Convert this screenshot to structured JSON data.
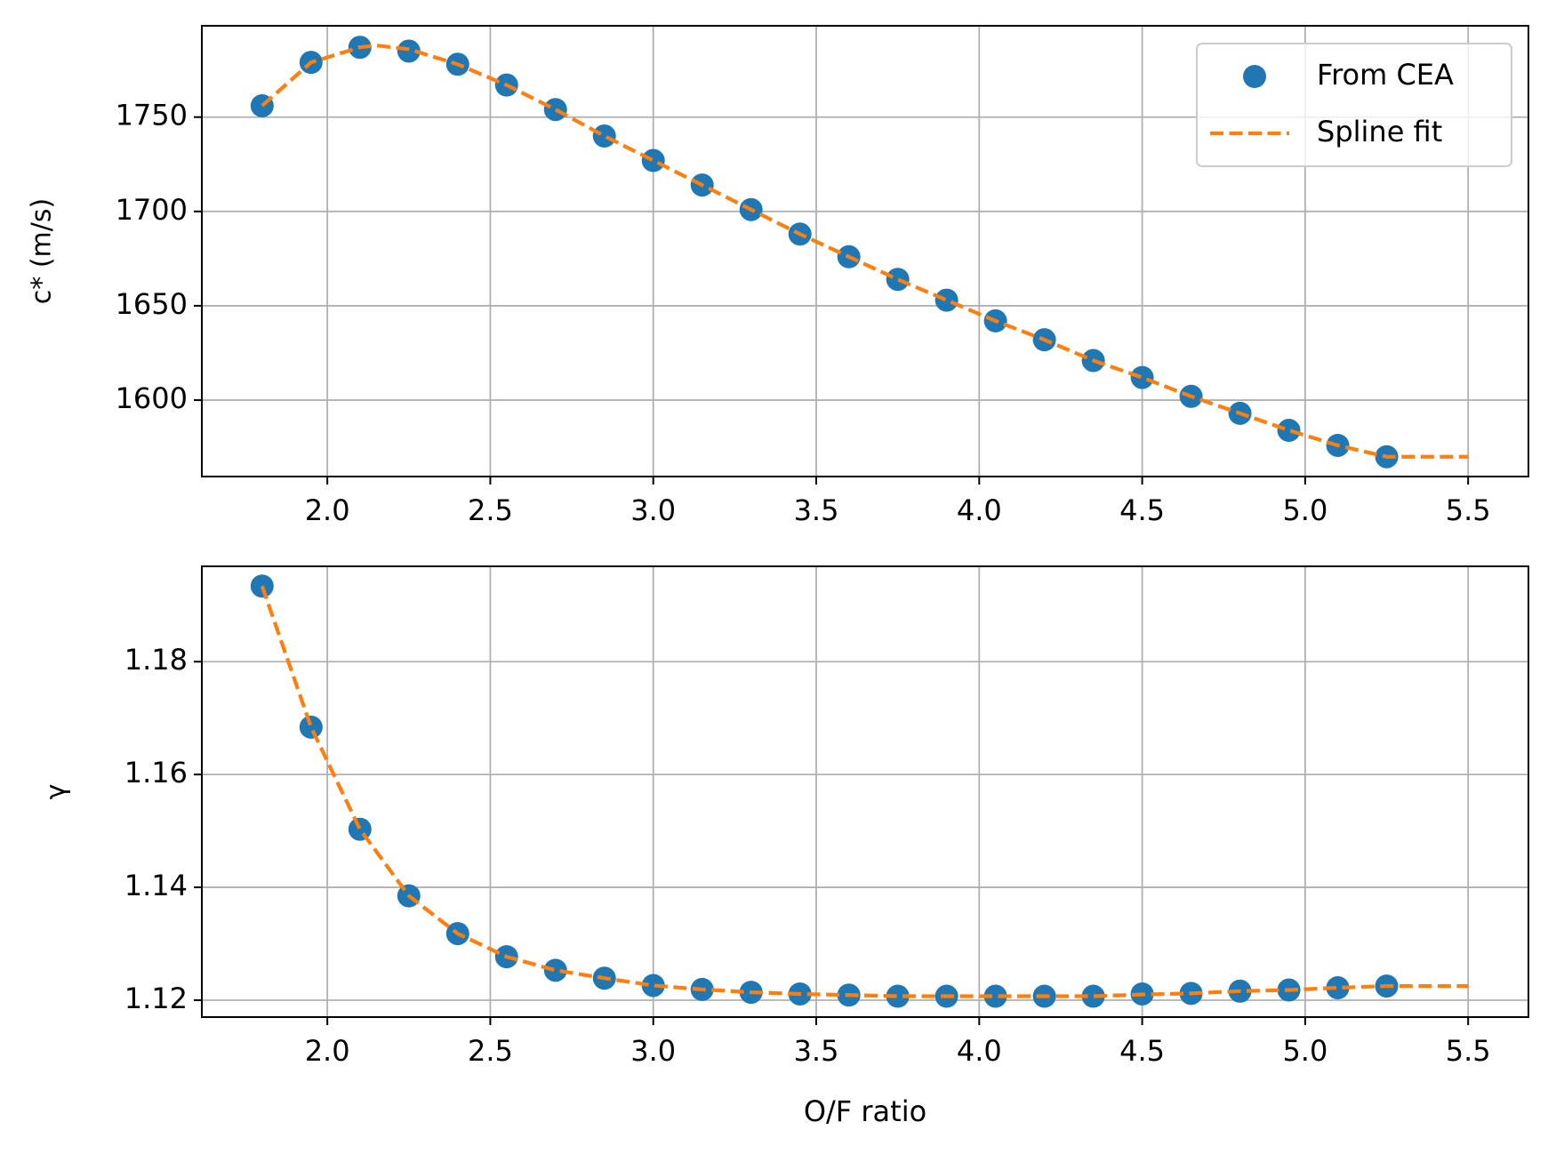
{
  "chart_data": [
    {
      "type": "line",
      "ylabel": "c* (m/s)",
      "xlim": [
        1.615,
        5.685
      ],
      "ylim": [
        1559.5,
        1798.4
      ],
      "xticks": [
        {
          "value": 2,
          "label": "2.0"
        },
        2.5,
        {
          "value": 3,
          "label": "3.0"
        },
        3.5,
        {
          "value": 4,
          "label": "4.0"
        },
        4.5,
        {
          "value": 5,
          "label": "5.0"
        },
        5.5
      ],
      "yticks": [
        1600,
        1650,
        1700,
        1750
      ],
      "grid": true,
      "legend": "upper right",
      "series": [
        {
          "name": "From CEA",
          "color": "#1f77b4",
          "marker": "circle",
          "x": [
            1.8,
            1.95,
            2.1,
            2.25,
            2.4,
            2.55,
            2.7,
            2.85,
            3.0,
            3.15,
            3.3,
            3.45,
            3.6,
            3.75,
            3.9,
            4.05,
            4.2,
            4.35,
            4.5,
            4.65,
            4.8,
            4.95,
            5.1,
            5.25
          ],
          "values": [
            1756,
            1779,
            1787,
            1785,
            1778,
            1767,
            1754,
            1740,
            1727,
            1714,
            1701,
            1688,
            1676,
            1664,
            1653,
            1642,
            1632,
            1621,
            1612,
            1602,
            1593,
            1584,
            1576,
            1570
          ]
        },
        {
          "name": "Spline fit",
          "color": "#ff7f0e",
          "dashed": true,
          "x": [
            1.8,
            1.95,
            2.1,
            2.15,
            2.25,
            2.4,
            2.55,
            2.7,
            2.85,
            3.0,
            3.15,
            3.3,
            3.45,
            3.6,
            3.75,
            3.9,
            4.05,
            4.2,
            4.35,
            4.5,
            4.65,
            4.8,
            4.95,
            5.1,
            5.25,
            5.35,
            5.45,
            5.5
          ],
          "values": [
            1756,
            1779,
            1787,
            1788,
            1786,
            1778,
            1767,
            1754,
            1740,
            1727,
            1714,
            1701,
            1688,
            1676,
            1664,
            1653,
            1642,
            1632,
            1621,
            1612,
            1602,
            1593,
            1584,
            1576,
            1570,
            1570,
            1570,
            1570
          ]
        }
      ]
    },
    {
      "type": "line",
      "ylabel": "γ",
      "xlabel": "O/F ratio",
      "xlim": [
        1.615,
        5.685
      ],
      "ylim": [
        1.117,
        1.1969
      ],
      "xticks": [
        {
          "value": 2,
          "label": "2.0"
        },
        2.5,
        {
          "value": 3,
          "label": "3.0"
        },
        3.5,
        {
          "value": 4,
          "label": "4.0"
        },
        4.5,
        {
          "value": 5,
          "label": "5.0"
        },
        5.5
      ],
      "yticks": [
        1.12,
        1.14,
        1.16,
        1.18
      ],
      "grid": true,
      "series": [
        {
          "color": "#1f77b4",
          "marker": "circle",
          "x": [
            1.8,
            1.95,
            2.1,
            2.25,
            2.4,
            2.55,
            2.7,
            2.85,
            3.0,
            3.15,
            3.3,
            3.45,
            3.6,
            3.75,
            3.9,
            4.05,
            4.2,
            4.35,
            4.5,
            4.65,
            4.8,
            4.95,
            5.1,
            5.25
          ],
          "values": [
            1.1934,
            1.1684,
            1.1503,
            1.1385,
            1.1318,
            1.1277,
            1.1253,
            1.1239,
            1.1226,
            1.1219,
            1.1214,
            1.1211,
            1.1209,
            1.1207,
            1.1207,
            1.1207,
            1.1207,
            1.1207,
            1.1211,
            1.1212,
            1.1216,
            1.1218,
            1.1222,
            1.1225
          ]
        },
        {
          "color": "#ff7f0e",
          "dashed": true,
          "x": [
            1.8,
            1.95,
            2.1,
            2.25,
            2.4,
            2.55,
            2.7,
            2.85,
            3.0,
            3.15,
            3.3,
            3.45,
            3.6,
            3.75,
            3.9,
            4.05,
            4.2,
            4.35,
            4.5,
            4.65,
            4.8,
            4.95,
            5.1,
            5.25,
            5.35,
            5.45,
            5.5
          ],
          "values": [
            1.1934,
            1.1684,
            1.1503,
            1.1385,
            1.1318,
            1.1277,
            1.1253,
            1.1239,
            1.1226,
            1.1219,
            1.1214,
            1.1211,
            1.1209,
            1.1207,
            1.1207,
            1.1207,
            1.1207,
            1.1207,
            1.121,
            1.1212,
            1.1216,
            1.1218,
            1.1222,
            1.1225,
            1.1225,
            1.1225,
            1.1225
          ]
        }
      ]
    }
  ]
}
